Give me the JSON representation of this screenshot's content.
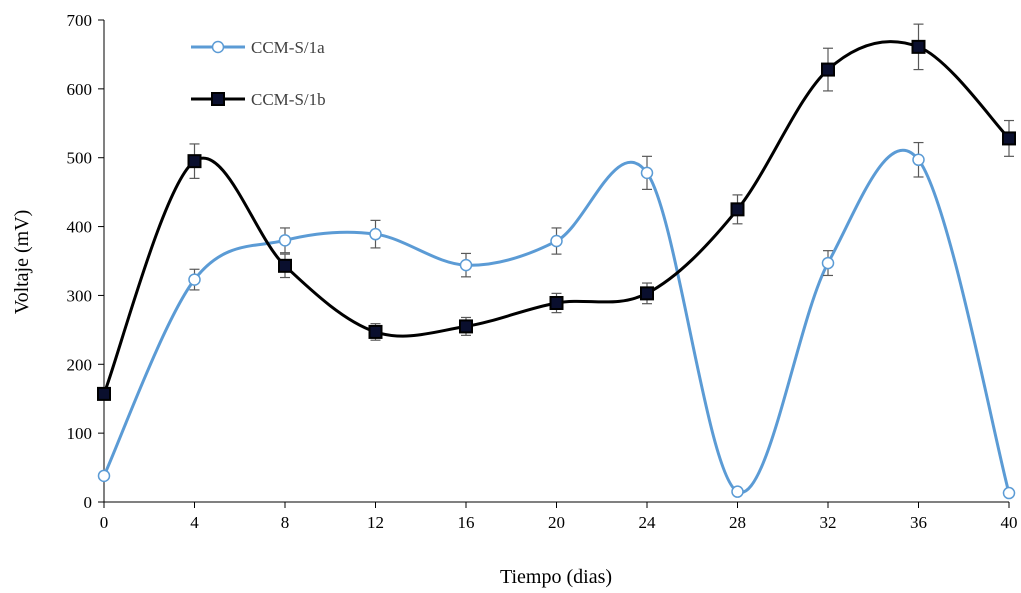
{
  "chart_data": {
    "type": "line",
    "xlabel": "Tiempo (dias)",
    "ylabel": "Voltaje (mV)",
    "xlim": [
      0,
      40
    ],
    "ylim": [
      0,
      700
    ],
    "x_ticks": [
      "0",
      "4",
      "8",
      "12",
      "16",
      "20",
      "24",
      "28",
      "32",
      "36",
      "40"
    ],
    "y_ticks": [
      "0",
      "100",
      "200",
      "300",
      "400",
      "500",
      "600",
      "700"
    ],
    "grid": false,
    "legend_position": "top-left",
    "smooth": true,
    "error_bars": true,
    "series": [
      {
        "name": "CCM-S/1a",
        "color": "#5b9bd5",
        "marker": "open-circle",
        "x": [
          0,
          4,
          8,
          12,
          16,
          20,
          24,
          28,
          32,
          36,
          40
        ],
        "y": [
          38,
          323,
          380,
          389,
          344,
          379,
          478,
          15,
          347,
          497,
          13
        ],
        "err": [
          0,
          15,
          18,
          20,
          17,
          19,
          24,
          0,
          18,
          25,
          0
        ]
      },
      {
        "name": "CCM-S/1b",
        "color": "#000000",
        "marker": "filled-square",
        "x": [
          0,
          4,
          8,
          12,
          16,
          20,
          24,
          28,
          32,
          36,
          40
        ],
        "y": [
          157,
          495,
          343,
          247,
          255,
          289,
          303,
          425,
          628,
          661,
          528
        ],
        "err": [
          0,
          25,
          17,
          12,
          13,
          14,
          15,
          21,
          31,
          33,
          26
        ]
      }
    ]
  }
}
